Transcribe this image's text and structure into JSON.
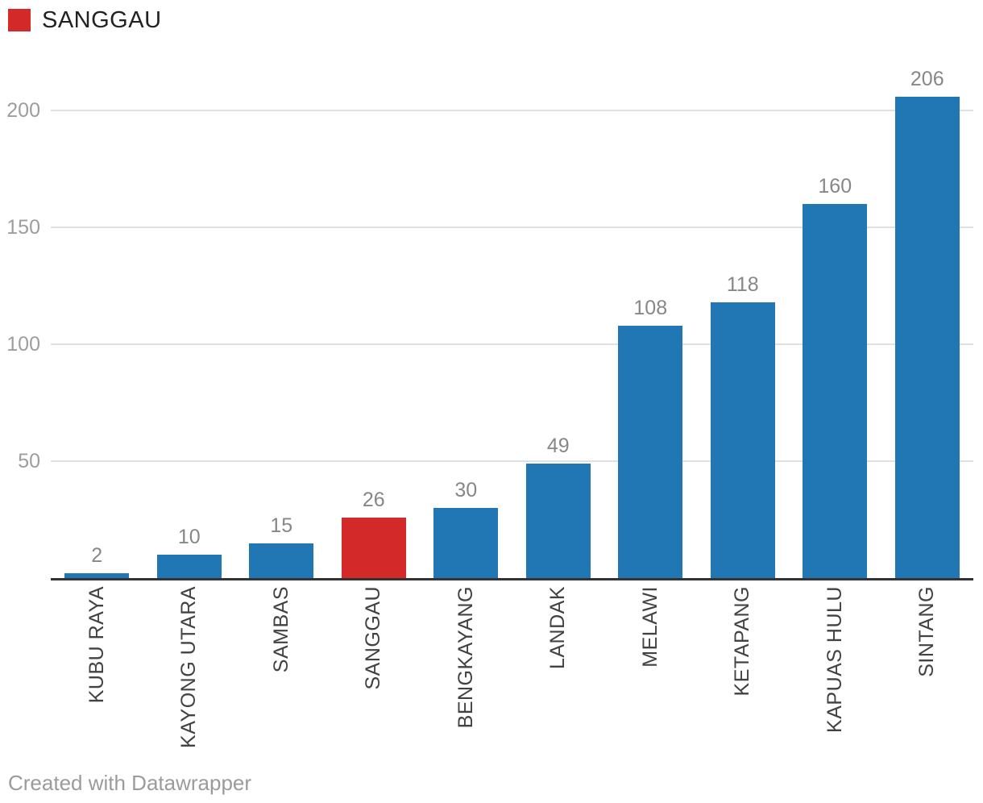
{
  "legend": {
    "label": "SANGGAU",
    "swatch_color": "#d32928"
  },
  "footer": {
    "text": "Created with Datawrapper"
  },
  "colors": {
    "bar_blue": "#2077b4",
    "bar_highlight_red": "#d32928",
    "gridline": "#e0e0e0",
    "axis_line": "#333333",
    "y_tick_text": "#9d9d9d",
    "value_label_text": "#878787",
    "x_label_text": "#424242",
    "legend_text": "#222222",
    "footer_text": "#9b9b9b"
  },
  "chart_data": {
    "type": "bar",
    "title": "",
    "xlabel": "",
    "ylabel": "",
    "categories": [
      "KUBU RAYA",
      "KAYONG UTARA",
      "SAMBAS",
      "SANGGAU",
      "BENGKAYANG",
      "LANDAK",
      "MELAWI",
      "KETAPANG",
      "KAPUAS HULU",
      "SINTANG"
    ],
    "values": [
      2,
      10,
      15,
      26,
      30,
      49,
      108,
      118,
      160,
      206
    ],
    "value_labels_shown": true,
    "highlight_category": "SANGGAU",
    "yticks": [
      50,
      100,
      150,
      200
    ],
    "ylim": [
      0,
      220
    ],
    "grid": true,
    "legend_position": "top-left",
    "x_label_rotation_degrees": -90
  }
}
